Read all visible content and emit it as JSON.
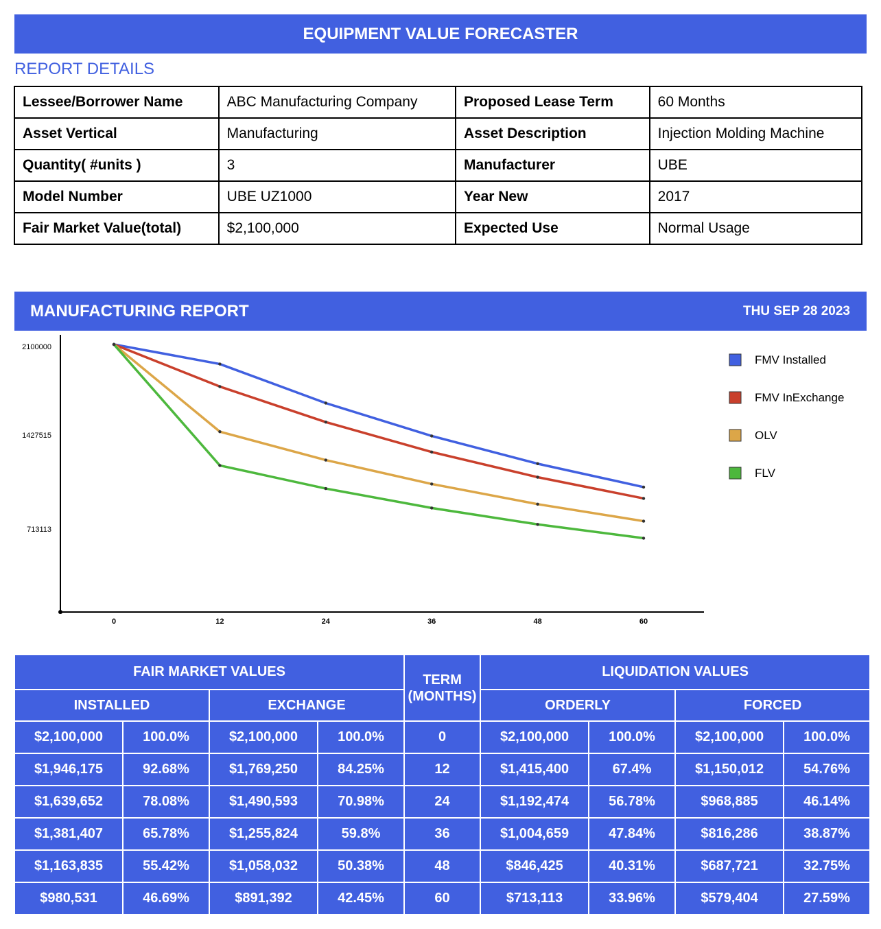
{
  "header": {
    "title": "EQUIPMENT VALUE FORECASTER"
  },
  "report_details": {
    "heading": "REPORT DETAILS",
    "rows": [
      {
        "label1": "Lessee/Borrower Name",
        "value1": "ABC Manufacturing Company",
        "label2": "Proposed Lease Term",
        "value2": "60 Months"
      },
      {
        "label1": "Asset Vertical",
        "value1": "Manufacturing",
        "label2": "Asset Description",
        "value2": "Injection Molding Machine"
      },
      {
        "label1": "Quantity( #units )",
        "value1": "3",
        "label2": "Manufacturer",
        "value2": "UBE"
      },
      {
        "label1": "Model Number",
        "value1": "UBE UZ1000",
        "label2": "Year New",
        "value2": "2017"
      },
      {
        "label1": "Fair Market Value(total)",
        "value1": "$2,100,000",
        "label2": "Expected Use",
        "value2": "Normal Usage"
      }
    ]
  },
  "report": {
    "title": "MANUFACTURING REPORT",
    "date": "THU SEP 28 2023"
  },
  "chart_data": {
    "type": "line",
    "x": [
      0,
      12,
      24,
      36,
      48,
      60
    ],
    "y_ticks": [
      2100000,
      1427515,
      713113
    ],
    "x_ticks": [
      "0",
      "12",
      "24",
      "36",
      "48",
      "60"
    ],
    "ylim": [
      0,
      2100000
    ],
    "legend_position": "right",
    "series": [
      {
        "name": "FMV Installed",
        "color": "#4160e0",
        "values": [
          2100000,
          1946175,
          1639652,
          1381407,
          1163835,
          980531
        ]
      },
      {
        "name": "FMV InExchange",
        "color": "#c9402c",
        "values": [
          2100000,
          1769250,
          1490593,
          1255824,
          1058032,
          891392
        ]
      },
      {
        "name": "OLV",
        "color": "#dca648",
        "values": [
          2100000,
          1415400,
          1192474,
          1004659,
          846425,
          713113
        ]
      },
      {
        "name": "FLV",
        "color": "#4db83d",
        "values": [
          2100000,
          1150012,
          968885,
          816286,
          687721,
          579404
        ]
      }
    ]
  },
  "values_table": {
    "fmv_header": "FAIR MARKET VALUES",
    "term_header": "TERM (MONTHS)",
    "liq_header": "LIQUIDATION VALUES",
    "installed": "INSTALLED",
    "exchange": "EXCHANGE",
    "orderly": "ORDERLY",
    "forced": "FORCED",
    "rows": [
      [
        "$2,100,000",
        "100.0%",
        "$2,100,000",
        "100.0%",
        "0",
        "$2,100,000",
        "100.0%",
        "$2,100,000",
        "100.0%"
      ],
      [
        "$1,946,175",
        "92.68%",
        "$1,769,250",
        "84.25%",
        "12",
        "$1,415,400",
        "67.4%",
        "$1,150,012",
        "54.76%"
      ],
      [
        "$1,639,652",
        "78.08%",
        "$1,490,593",
        "70.98%",
        "24",
        "$1,192,474",
        "56.78%",
        "$968,885",
        "46.14%"
      ],
      [
        "$1,381,407",
        "65.78%",
        "$1,255,824",
        "59.8%",
        "36",
        "$1,004,659",
        "47.84%",
        "$816,286",
        "38.87%"
      ],
      [
        "$1,163,835",
        "55.42%",
        "$1,058,032",
        "50.38%",
        "48",
        "$846,425",
        "40.31%",
        "$687,721",
        "32.75%"
      ],
      [
        "$980,531",
        "46.69%",
        "$891,392",
        "42.45%",
        "60",
        "$713,113",
        "33.96%",
        "$579,404",
        "27.59%"
      ]
    ]
  }
}
